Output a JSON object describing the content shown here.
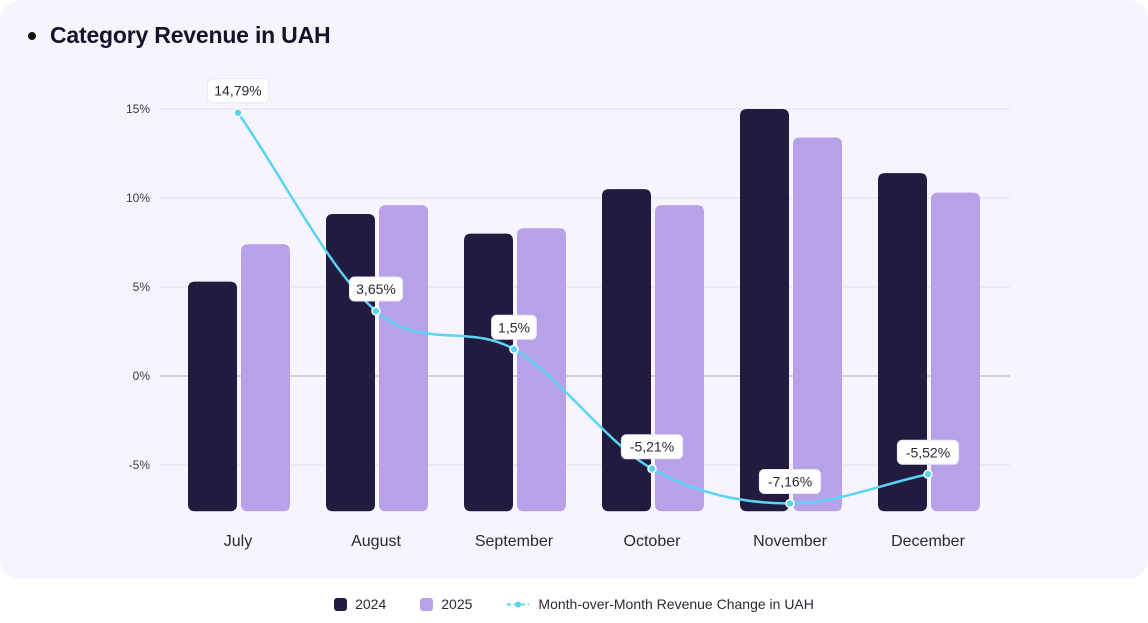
{
  "title": "Category Revenue in UAH",
  "colors": {
    "series_2024": "#211b3f",
    "series_2025": "#b7a1e9",
    "line": "#5ad4f3",
    "grid": "#e4def2",
    "zero_line": "#cbc3e0",
    "card_bg": "#f7f4fd"
  },
  "chart_data": {
    "type": "bar",
    "title": "Category Revenue in UAH",
    "categories": [
      "July",
      "August",
      "September",
      "October",
      "November",
      "December"
    ],
    "y_ticks": [
      15,
      10,
      5,
      0,
      -5
    ],
    "y_tick_labels": [
      "15%",
      "10%",
      "5%",
      "0%",
      "-5%"
    ],
    "ylim": [
      -7.6,
      15.2
    ],
    "series": [
      {
        "name": "2024",
        "type": "bar",
        "values": [
          5.3,
          9.1,
          8.0,
          10.5,
          15.0,
          11.4
        ]
      },
      {
        "name": "2025",
        "type": "bar",
        "values": [
          7.4,
          9.6,
          8.3,
          9.6,
          13.4,
          10.3
        ]
      },
      {
        "name": "Month-over-Month Revenue Change in UAH",
        "type": "line",
        "values": [
          14.79,
          3.65,
          1.5,
          -5.21,
          -7.16,
          -5.52
        ],
        "labels": [
          "14,79%",
          "3,65%",
          "1,5%",
          "-5,21%",
          "-7,16%",
          "-5,52%"
        ]
      }
    ],
    "grid": true,
    "legend_position": "bottom-center"
  },
  "legend": {
    "items": [
      {
        "label": "2024"
      },
      {
        "label": "2025"
      },
      {
        "label": "Month-over-Month Revenue Change in UAH"
      }
    ]
  }
}
